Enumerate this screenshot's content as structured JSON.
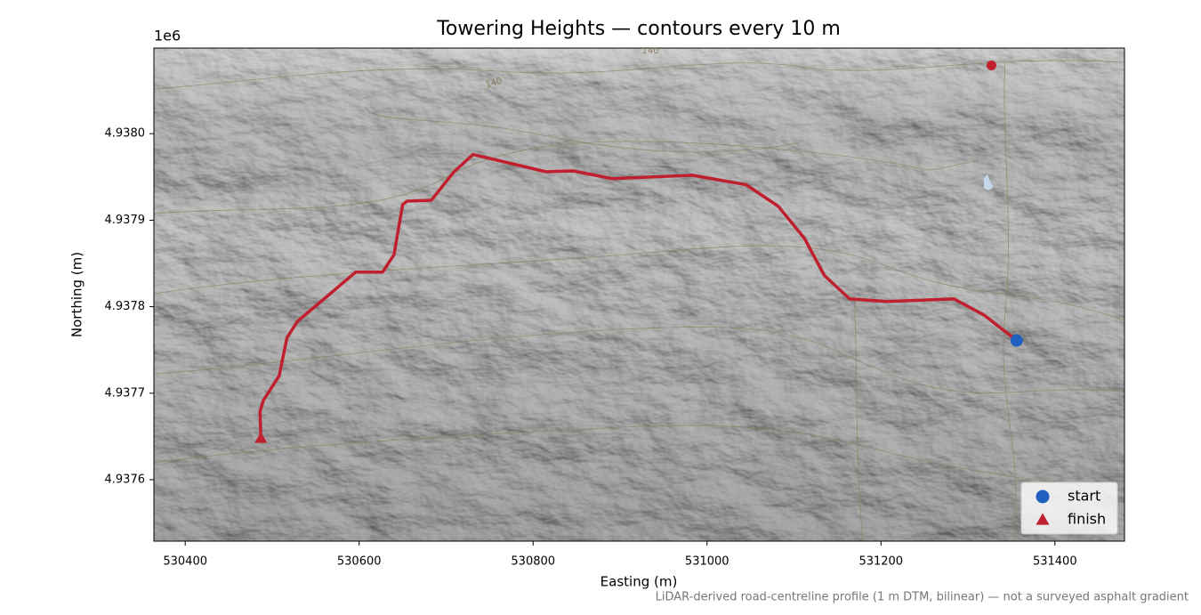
{
  "chart_data": {
    "type": "map-route",
    "title": "Towering Heights — contours every 10 m",
    "xlabel": "Easting (m)",
    "ylabel": "Northing (m)",
    "y_offset_label": "1e6",
    "note": "LiDAR-derived road-centreline profile (1 m DTM, bilinear) — not a surveyed asphalt gradient",
    "contour_labels": [
      "140",
      "140"
    ],
    "xlim": [
      530364,
      531480
    ],
    "ylim": [
      4937529,
      4938099
    ],
    "xticks": [
      530400,
      530600,
      530800,
      531000,
      531200,
      531400
    ],
    "yticks": [
      {
        "value": 4937600,
        "label": "4.9376"
      },
      {
        "value": 4937700,
        "label": "4.9377"
      },
      {
        "value": 4937800,
        "label": "4.9378"
      },
      {
        "value": 4937900,
        "label": "4.9379"
      },
      {
        "value": 4938000,
        "label": "4.9380"
      }
    ],
    "legend_loc": "lower right",
    "series": [
      {
        "type": "line",
        "color": "#c01f2e",
        "x": [
          530487,
          530486,
          530490,
          530508,
          530517,
          530529,
          530596,
          530627,
          530640,
          530650,
          530655,
          530683,
          530709,
          530731,
          530815,
          530846,
          530891,
          530983,
          531045,
          531082,
          531112,
          531135,
          531164,
          531207,
          531284,
          531319,
          531356
        ],
        "y": [
          4937648,
          4937679,
          4937692,
          4937720,
          4937764,
          4937783,
          4937840,
          4937840,
          4937860,
          4937918,
          4937922,
          4937923,
          4937956,
          4937976,
          4937956,
          4937957,
          4937948,
          4937952,
          4937941,
          4937916,
          4937879,
          4937836,
          4937809,
          4937806,
          4937809,
          4937790,
          4937761
        ]
      },
      {
        "type": "scatter",
        "name": "start",
        "marker": "circle",
        "color": "#1f5fbf",
        "x": [
          531356
        ],
        "y": [
          4937761
        ]
      },
      {
        "type": "scatter",
        "name": "finish",
        "marker": "triangle",
        "color": "#c01f2e",
        "x": [
          530487
        ],
        "y": [
          4937648
        ]
      },
      {
        "type": "scatter",
        "marker": "circle",
        "color": "#c01f2e",
        "x": [
          531327
        ],
        "y": [
          4938079
        ]
      }
    ]
  }
}
